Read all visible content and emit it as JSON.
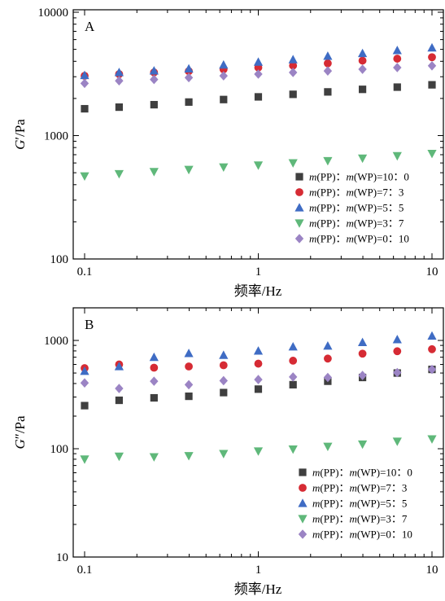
{
  "chart_data": [
    {
      "type": "scatter",
      "panel_label": "A",
      "xlabel": "频率/Hz",
      "ylabel_main": "G",
      "ylabel_suffix": "′/Pa",
      "x_scale": "log",
      "y_scale": "log",
      "xlim": [
        0.1,
        10
      ],
      "ylim": [
        100,
        10000
      ],
      "x_ticks": [
        0.1,
        1,
        10
      ],
      "x_tick_labels": [
        "0.1",
        "1",
        "10"
      ],
      "y_ticks": [
        100,
        1000,
        10000
      ],
      "y_tick_labels": [
        "100",
        "1000",
        "10000"
      ],
      "grid": false,
      "legend_position": "bottom-right",
      "x": [
        0.1,
        0.158,
        0.251,
        0.398,
        0.631,
        1.0,
        1.585,
        2.512,
        3.981,
        6.31,
        10.0
      ],
      "series": [
        {
          "name": "m(PP)：m(WP)=10：0",
          "marker": "square",
          "color": "#3f3f3f",
          "values": [
            1650,
            1700,
            1780,
            1870,
            1960,
            2060,
            2160,
            2260,
            2370,
            2470,
            2580
          ]
        },
        {
          "name": "m(PP)：m(WP)=7：3",
          "marker": "circle",
          "color": "#d62b34",
          "values": [
            3050,
            3150,
            3250,
            3330,
            3440,
            3560,
            3690,
            3850,
            4050,
            4200,
            4320
          ]
        },
        {
          "name": "m(PP)：m(WP)=5：5",
          "marker": "triangle-up",
          "color": "#3f6cc4",
          "values": [
            3080,
            3250,
            3350,
            3480,
            3740,
            3950,
            4130,
            4410,
            4640,
            4900,
            5150
          ]
        },
        {
          "name": "m(PP)：m(WP)=3：7",
          "marker": "triangle-down",
          "color": "#5fb87a",
          "values": [
            470,
            490,
            510,
            530,
            555,
            575,
            600,
            625,
            655,
            685,
            715
          ]
        },
        {
          "name": "m(PP)：m(WP)=0：10",
          "marker": "diamond",
          "color": "#9b84c4",
          "values": [
            2650,
            2780,
            2850,
            2950,
            3050,
            3150,
            3250,
            3340,
            3450,
            3560,
            3680
          ]
        }
      ]
    },
    {
      "type": "scatter",
      "panel_label": "B",
      "xlabel": "频率/Hz",
      "ylabel_main": "G",
      "ylabel_suffix": "″/Pa",
      "x_scale": "log",
      "y_scale": "log",
      "xlim": [
        0.1,
        10
      ],
      "ylim": [
        10,
        2000
      ],
      "x_ticks": [
        0.1,
        1,
        10
      ],
      "x_tick_labels": [
        "0.1",
        "1",
        "10"
      ],
      "y_ticks": [
        10,
        100,
        1000
      ],
      "y_tick_labels": [
        "10",
        "100",
        "1000"
      ],
      "grid": false,
      "legend_position": "bottom-right",
      "x": [
        0.1,
        0.158,
        0.251,
        0.398,
        0.631,
        1.0,
        1.585,
        2.512,
        3.981,
        6.31,
        10.0
      ],
      "series": [
        {
          "name": "m(PP)：m(WP)=10：0",
          "marker": "square",
          "color": "#3f3f3f",
          "values": [
            250,
            280,
            295,
            305,
            330,
            355,
            390,
            420,
            455,
            500,
            540
          ]
        },
        {
          "name": "m(PP)：m(WP)=7：3",
          "marker": "circle",
          "color": "#d62b34",
          "values": [
            555,
            600,
            560,
            575,
            590,
            610,
            650,
            680,
            755,
            795,
            830
          ]
        },
        {
          "name": "m(PP)：m(WP)=5：5",
          "marker": "triangle-up",
          "color": "#3f6cc4",
          "values": [
            520,
            575,
            700,
            760,
            730,
            800,
            875,
            890,
            960,
            1020,
            1100
          ]
        },
        {
          "name": "m(PP)：m(WP)=3：7",
          "marker": "triangle-down",
          "color": "#5fb87a",
          "values": [
            80,
            85,
            84,
            86,
            90,
            95,
            99,
            105,
            110,
            117,
            123
          ]
        },
        {
          "name": "m(PP)：m(WP)=0：10",
          "marker": "diamond",
          "color": "#9b84c4",
          "values": [
            405,
            360,
            420,
            390,
            425,
            435,
            460,
            455,
            475,
            505,
            540
          ]
        }
      ]
    }
  ]
}
